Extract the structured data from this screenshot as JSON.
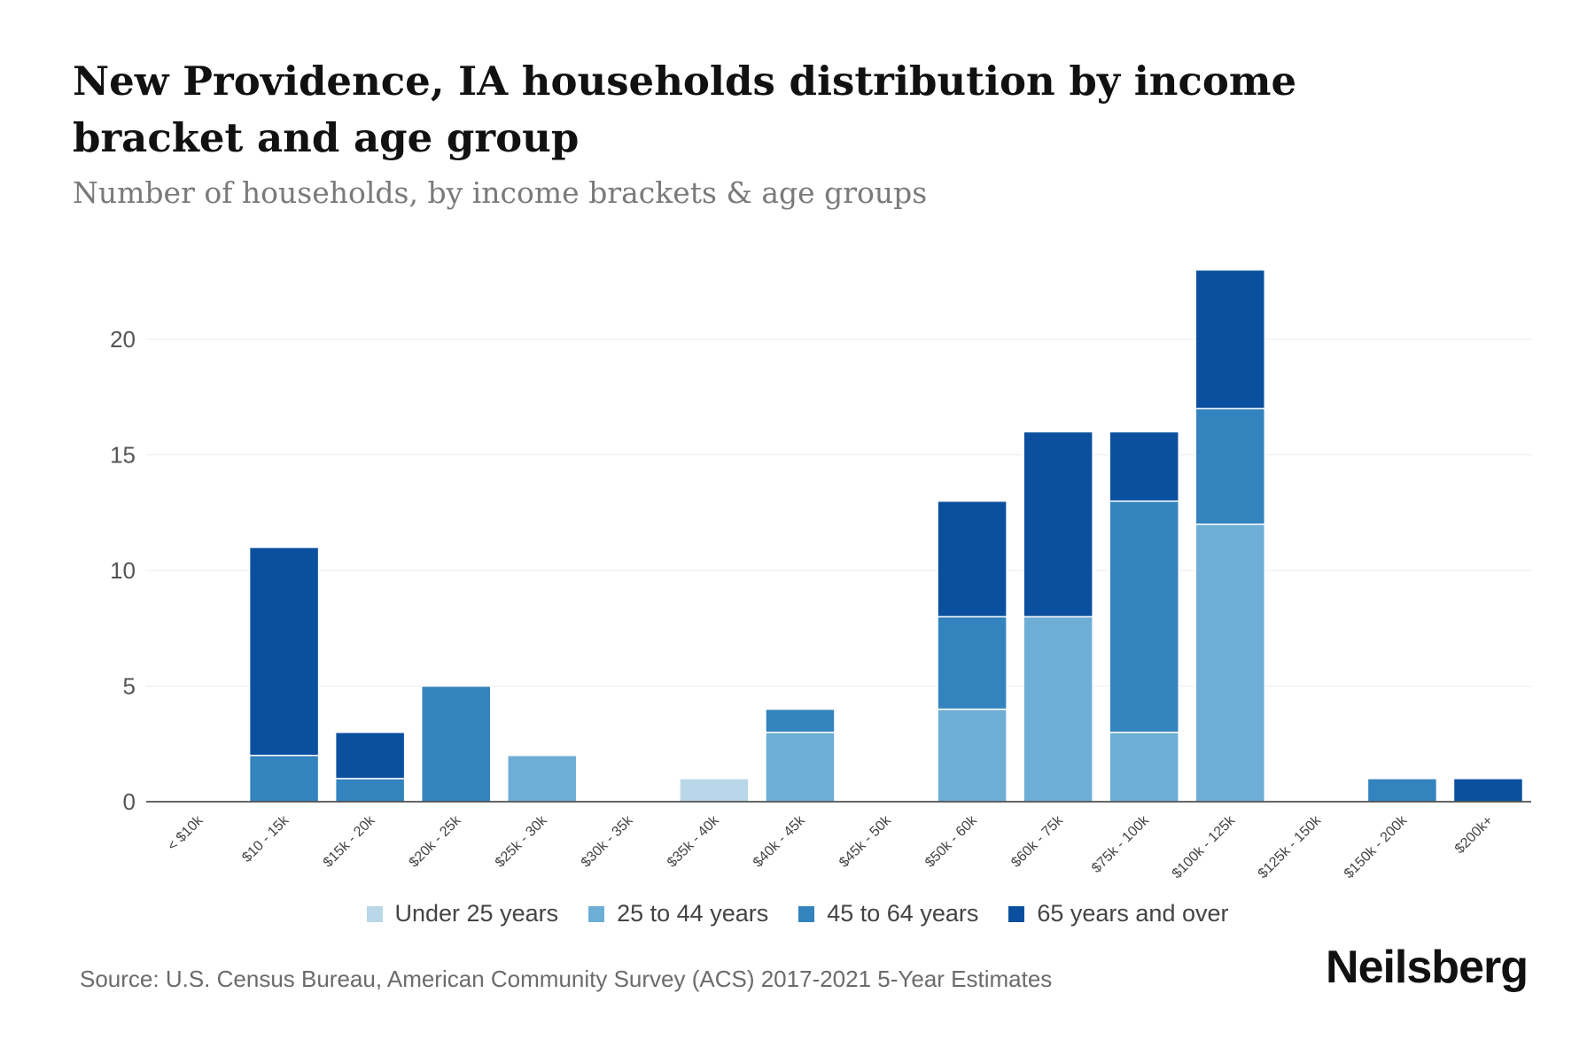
{
  "chart_data": {
    "type": "bar",
    "stacked": true,
    "title": "New Providence, IA households distribution by income bracket and age group",
    "subtitle": "Number of households, by income brackets & age groups",
    "categories": [
      "< $10k",
      "$10 - 15k",
      "$15k - 20k",
      "$20k - 25k",
      "$25k - 30k",
      "$30k - 35k",
      "$35k - 40k",
      "$40k - 45k",
      "$45k - 50k",
      "$50k - 60k",
      "$60k - 75k",
      "$75k - 100k",
      "$100k - 125k",
      "$125k - 150k",
      "$150k - 200k",
      "$200k+"
    ],
    "series": [
      {
        "name": "Under 25 years",
        "color": "#b9d7e8",
        "values": [
          0,
          0,
          0,
          0,
          0,
          0,
          1,
          0,
          0,
          0,
          0,
          0,
          0,
          0,
          0,
          0
        ]
      },
      {
        "name": "25 to 44 years",
        "color": "#6eaed6",
        "values": [
          0,
          0,
          0,
          0,
          2,
          0,
          0,
          3,
          0,
          4,
          8,
          3,
          12,
          0,
          0,
          0
        ]
      },
      {
        "name": "45 to 64 years",
        "color": "#3383be",
        "values": [
          0,
          2,
          1,
          5,
          0,
          0,
          0,
          1,
          0,
          4,
          0,
          10,
          5,
          0,
          1,
          0
        ]
      },
      {
        "name": "65 years and over",
        "color": "#0b509e",
        "values": [
          0,
          9,
          2,
          0,
          0,
          0,
          0,
          0,
          0,
          5,
          8,
          3,
          6,
          0,
          0,
          1
        ]
      }
    ],
    "yticks": [
      0,
      5,
      10,
      15,
      20
    ],
    "ylim": [
      0,
      25
    ],
    "xlabel": "",
    "ylabel": "",
    "grid": true,
    "legend": "bottom"
  },
  "source": "Source: U.S. Census Bureau, American Community Survey (ACS) 2017-2021 5-Year Estimates",
  "brand": "Neilsberg"
}
